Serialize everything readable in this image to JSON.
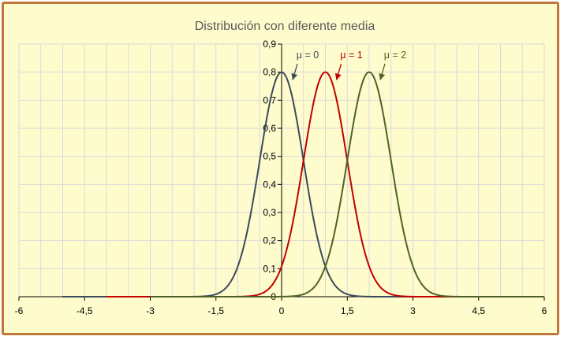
{
  "chart_data": {
    "type": "line",
    "title": "Distribución con diferente media",
    "xlabel": "",
    "ylabel": "",
    "xlim": [
      -6,
      6
    ],
    "ylim": [
      0,
      0.9
    ],
    "x_ticks": [
      "-6",
      "-4,5",
      "-3",
      "-1,5",
      "0",
      "1,5",
      "3",
      "4,5",
      "6"
    ],
    "y_ticks": [
      "0",
      "0,1",
      "0,2",
      "0,3",
      "0,4",
      "0,5",
      "0,6",
      "0,7",
      "0,8",
      "0,9"
    ],
    "grid": true,
    "legend": "none",
    "series": [
      {
        "mu": 0,
        "sigma": 0.5,
        "x_range": [
          -5,
          5
        ],
        "peak": [
          0,
          0.8
        ],
        "color": "#3b4a5c",
        "annotation": "μ = 0"
      },
      {
        "mu": 1,
        "sigma": 0.5,
        "x_range": [
          -4,
          6
        ],
        "peak": [
          1,
          0.8
        ],
        "color": "#c00000",
        "annotation": "μ = 1"
      },
      {
        "mu": 2,
        "sigma": 0.5,
        "x_range": [
          -3,
          7
        ],
        "peak": [
          2,
          0.8
        ],
        "color": "#4f6228",
        "annotation": "μ = 2"
      }
    ]
  }
}
